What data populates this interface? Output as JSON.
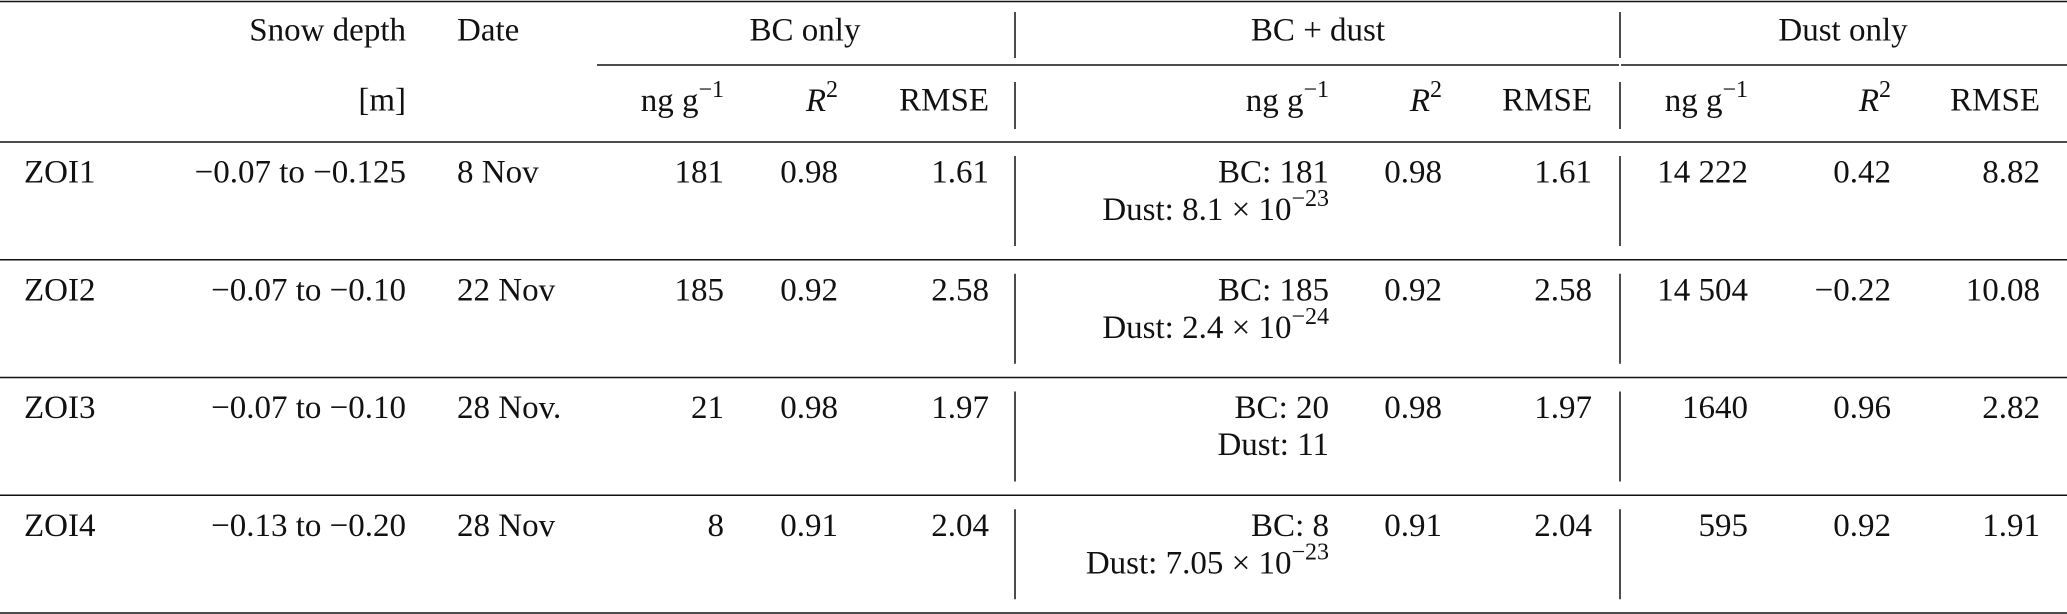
{
  "header": {
    "snow_depth": "Snow depth",
    "snow_depth_unit": "[m]",
    "date": "Date",
    "groups": [
      "BC only",
      "BC + dust",
      "Dust only"
    ],
    "subheaders": [
      [
        {
          "base": "ng g",
          "sup": "−1"
        },
        {
          "base": "R",
          "sup": "2"
        },
        "RMSE"
      ],
      [
        {
          "base": "ng g",
          "sup": "−1"
        },
        {
          "base": "R",
          "sup": "2"
        },
        "RMSE"
      ],
      [
        {
          "base": "ng g",
          "sup": "−1"
        },
        {
          "base": "R",
          "sup": "2"
        },
        "RMSE"
      ]
    ]
  },
  "rows": [
    {
      "id": "ZOI1",
      "depth": "−0.07 to −0.125",
      "date": "8 Nov",
      "bc_only": [
        "181",
        "0.98",
        "1.61"
      ],
      "bc_dust": {
        "bc": "BC: 181",
        "dust": {
          "base": "Dust: 8.1 × 10",
          "sup": "−23"
        },
        "r2": "0.98",
        "rmse": "1.61"
      },
      "dust_only": [
        "14 222",
        "0.42",
        "8.82"
      ]
    },
    {
      "id": "ZOI2",
      "depth": "−0.07 to −0.10",
      "date": "22 Nov",
      "bc_only": [
        "185",
        "0.92",
        "2.58"
      ],
      "bc_dust": {
        "bc": "BC: 185",
        "dust": {
          "base": "Dust: 2.4 × 10",
          "sup": "−24"
        },
        "r2": "0.92",
        "rmse": "2.58"
      },
      "dust_only": [
        "14 504",
        "−0.22",
        "10.08"
      ]
    },
    {
      "id": "ZOI3",
      "depth": "−0.07 to −0.10",
      "date": "28 Nov.",
      "bc_only": [
        "21",
        "0.98",
        "1.97"
      ],
      "bc_dust": {
        "bc": "BC: 20",
        "dust": "Dust: 11",
        "r2": "0.98",
        "rmse": "1.97"
      },
      "dust_only": [
        "1640",
        "0.96",
        "2.82"
      ]
    },
    {
      "id": "ZOI4",
      "depth": "−0.13 to −0.20",
      "date": "28 Nov",
      "bc_only": [
        "8",
        "0.91",
        "2.04"
      ],
      "bc_dust": {
        "bc": "BC: 8",
        "dust": {
          "base": "Dust: 7.05 × 10",
          "sup": "−23"
        },
        "r2": "0.91",
        "rmse": "2.04"
      },
      "dust_only": [
        "595",
        "0.92",
        "1.91"
      ]
    }
  ]
}
